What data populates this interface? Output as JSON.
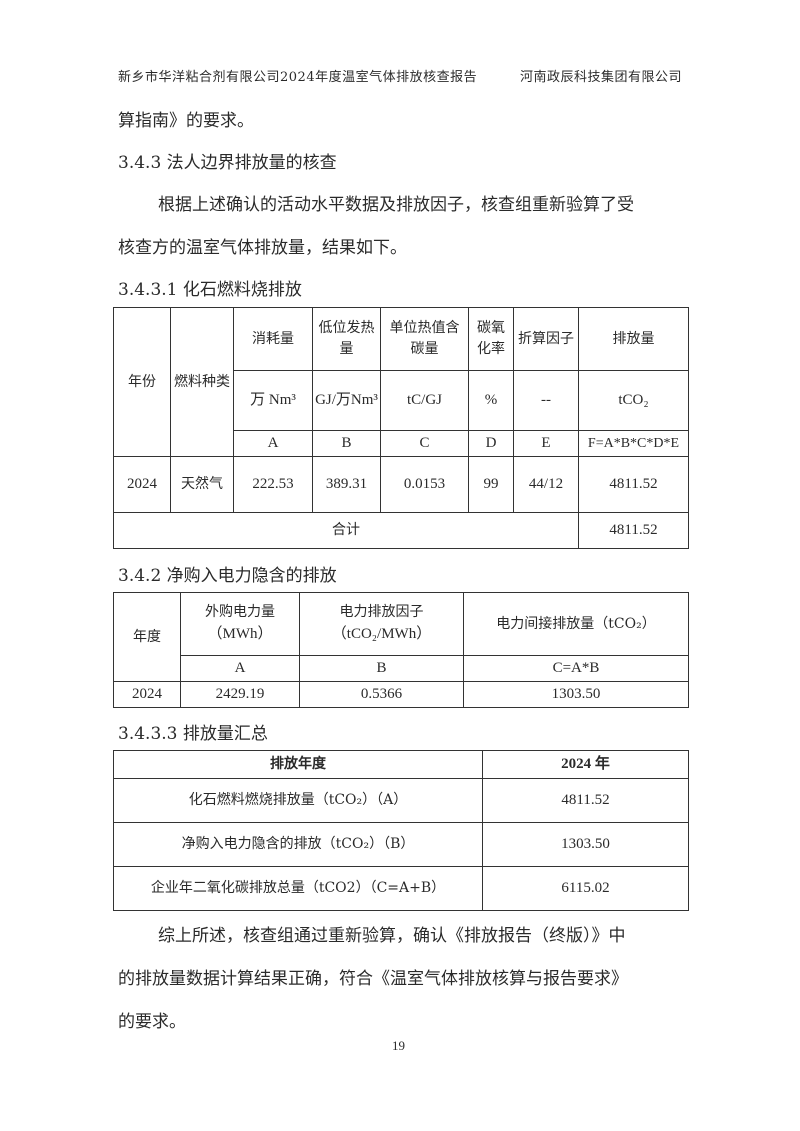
{
  "header": {
    "left": "新乡市华洋粘合剂有限公司2024年度温室气体排放核查报告",
    "right": "河南政辰科技集团有限公司"
  },
  "body": {
    "line_cont": "算指南》的要求。",
    "h_343": "3.4.3 法人边界排放量的核查",
    "p1_line1": "根据上述确认的活动水平数据及排放因子，核查组重新验算了受",
    "p1_line2": "核查方的温室气体排放量，结果如下。",
    "h_3431": "3.4.3.1 化石燃料烧排放",
    "h_342": "3.4.2 净购入电力隐含的排放",
    "h_3433": "3.4.3.3 排放量汇总",
    "p2_line1": "综上所述，核查组通过重新验算，确认《排放报告（终版）》中",
    "p2_line2": "的排放量数据计算结果正确，符合《温室气体排放核算与报告要求》",
    "p2_line3": "的要求。"
  },
  "table1": {
    "year_h": "年份",
    "fuel_h": "燃料种类",
    "cols": [
      {
        "name": "消耗量",
        "unit": "万 Nm³",
        "code": "A"
      },
      {
        "name": "低位发热量",
        "unit": "GJ/万Nm³",
        "code": "B"
      },
      {
        "name": "单位热值含碳量",
        "unit": "tC/GJ",
        "code": "C"
      },
      {
        "name": "碳氧化率",
        "unit": "%",
        "code": "D"
      },
      {
        "name": "折算因子",
        "unit": "--",
        "code": "E"
      },
      {
        "name": "排放量",
        "unit": "tCO₂",
        "code": "F=A*B*C*D*E"
      }
    ],
    "row": {
      "year": "2024",
      "fuel": "天然气",
      "values": [
        "222.53",
        "389.31",
        "0.0153",
        "99",
        "44/12",
        "4811.52"
      ]
    },
    "total_label": "合计",
    "total_value": "4811.52"
  },
  "table2": {
    "year_h": "年度",
    "cols": [
      {
        "name": "外购电力量",
        "unit": "（MWh）",
        "code": "A"
      },
      {
        "name": "电力排放因子",
        "unit": "（tCO₂/MWh）",
        "code": "B"
      },
      {
        "name": "电力间接排放量（tCO₂）",
        "unit": "",
        "code": "C=A*B"
      }
    ],
    "row": {
      "year": "2024",
      "values": [
        "2429.19",
        "0.5366",
        "1303.50"
      ]
    }
  },
  "table3": {
    "head": [
      "排放年度",
      "2024 年"
    ],
    "rows": [
      [
        "化石燃料燃烧排放量（tCO₂）（A）",
        "4811.52"
      ],
      [
        "净购入电力隐含的排放（tCO₂）（B）",
        "1303.50"
      ],
      [
        "企业年二氧化碳排放总量（tCO2）（C=A+B）",
        "6115.02"
      ]
    ]
  },
  "page_number": "19"
}
